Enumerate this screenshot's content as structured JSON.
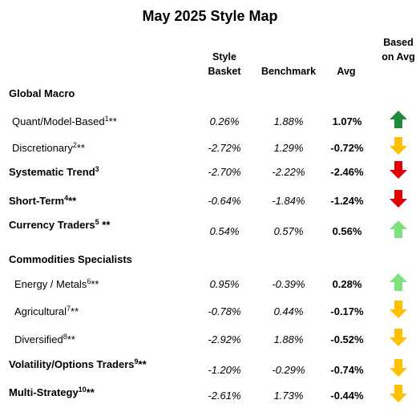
{
  "title": "May 2025 Style Map",
  "headers": {
    "basket": "Style Basket",
    "benchmark": "Benchmark",
    "avg": "Avg",
    "signal": "Based on Avg"
  },
  "rows": [
    {
      "label": "Global Macro",
      "style": "heading"
    },
    {
      "label": "Quant/Model-Based",
      "note": "1",
      "suffix": "**",
      "style": "sub",
      "basket": "0.26%",
      "benchmark": "1.88%",
      "avg": "1.07%",
      "arrow": "up",
      "arrow_color": "#1e8c3a"
    },
    {
      "label": "Discretionary",
      "note": "2",
      "suffix": "**",
      "style": "sub",
      "basket": "-2.72%",
      "benchmark": "1.29%",
      "avg": "-0.72%",
      "arrow": "down",
      "arrow_color": "#ffc000"
    },
    {
      "label": "Systematic Trend",
      "note": "3",
      "style": "heading",
      "basket": "-2.70%",
      "benchmark": "-2.22%",
      "avg": "-2.46%",
      "arrow": "down",
      "arrow_color": "#e00000"
    },
    {
      "label": "Short-Term",
      "note": "4",
      "suffix": "**",
      "style": "heading",
      "basket": "-0.64%",
      "benchmark": "-1.84%",
      "avg": "-1.24%",
      "arrow": "down",
      "arrow_color": "#e00000"
    },
    {
      "label": "Currency Traders",
      "note": "5",
      "suffix": " **",
      "style": "heading",
      "basket": "0.54%",
      "benchmark": "0.57%",
      "avg": "0.56%",
      "arrow": "up",
      "arrow_color": "#7ee07e"
    },
    {
      "label": "Commodities Specialists",
      "style": "heading"
    },
    {
      "label": "Energy / Metals",
      "note": "6",
      "suffix": "**",
      "style": "sub",
      "basket": "0.95%",
      "benchmark": "-0.39%",
      "avg": "0.28%",
      "arrow": "up",
      "arrow_color": "#7ee07e"
    },
    {
      "label": "Agricultural",
      "note": "7",
      "suffix": "**",
      "style": "sub",
      "basket": "-0.78%",
      "benchmark": "0.44%",
      "avg": "-0.17%",
      "arrow": "down",
      "arrow_color": "#ffc000"
    },
    {
      "label": "Diversified",
      "note": "8",
      "suffix": "**",
      "style": "sub",
      "basket": "-2.92%",
      "benchmark": "1.88%",
      "avg": "-0.52%",
      "arrow": "down",
      "arrow_color": "#ffc000"
    },
    {
      "label": "Volatility/Options Traders",
      "note": "9",
      "suffix": "**",
      "style": "heading",
      "basket": "-1.20%",
      "benchmark": "-0.29%",
      "avg": "-0.74%",
      "arrow": "down",
      "arrow_color": "#ffc000"
    },
    {
      "label": "Multi-Strategy",
      "note": "10",
      "suffix": "**",
      "style": "heading",
      "basket": "-2.61%",
      "benchmark": "1.73%",
      "avg": "-0.44%",
      "arrow": "down",
      "arrow_color": "#ffc000"
    }
  ]
}
